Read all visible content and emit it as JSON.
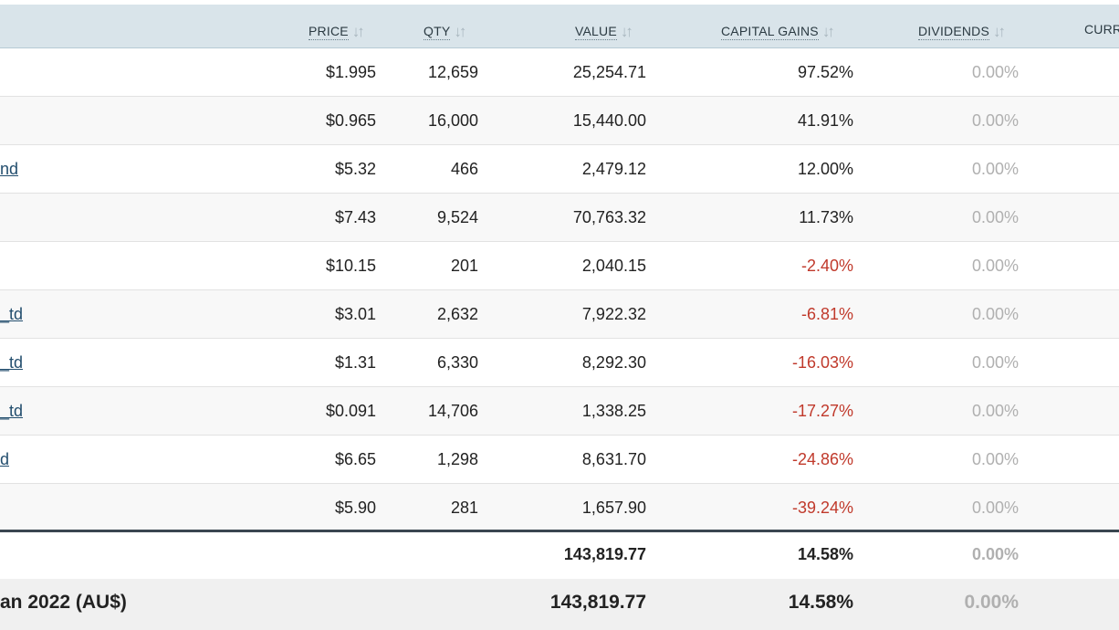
{
  "headers": {
    "price": "PRICE",
    "qty": "QTY",
    "value": "VALUE",
    "capital_gains": "CAPITAL GAINS",
    "dividends": "DIVIDENDS",
    "currency_partial": "CURR"
  },
  "sort_icon": "↓↑",
  "rows": [
    {
      "name": "",
      "price": "$1.995",
      "qty": "12,659",
      "value": "25,254.71",
      "gain": "97.52%",
      "gain_negative": false,
      "dividends": "0.00%"
    },
    {
      "name": "",
      "price": "$0.965",
      "qty": "16,000",
      "value": "15,440.00",
      "gain": "41.91%",
      "gain_negative": false,
      "dividends": "0.00%"
    },
    {
      "name": "nd",
      "price": "$5.32",
      "qty": "466",
      "value": "2,479.12",
      "gain": "12.00%",
      "gain_negative": false,
      "dividends": "0.00%"
    },
    {
      "name": "",
      "price": "$7.43",
      "qty": "9,524",
      "value": "70,763.32",
      "gain": "11.73%",
      "gain_negative": false,
      "dividends": "0.00%"
    },
    {
      "name": "",
      "price": "$10.15",
      "qty": "201",
      "value": "2,040.15",
      "gain": "-2.40%",
      "gain_negative": true,
      "dividends": "0.00%"
    },
    {
      "name": "_td",
      "price": "$3.01",
      "qty": "2,632",
      "value": "7,922.32",
      "gain": "-6.81%",
      "gain_negative": true,
      "dividends": "0.00%"
    },
    {
      "name": "_td",
      "price": "$1.31",
      "qty": "6,330",
      "value": "8,292.30",
      "gain": "-16.03%",
      "gain_negative": true,
      "dividends": "0.00%"
    },
    {
      "name": "_td",
      "price": "$0.091",
      "qty": "14,706",
      "value": "1,338.25",
      "gain": "-17.27%",
      "gain_negative": true,
      "dividends": "0.00%"
    },
    {
      "name": "d",
      "price": "$6.65",
      "qty": "1,298",
      "value": "8,631.70",
      "gain": "-24.86%",
      "gain_negative": true,
      "dividends": "0.00%"
    },
    {
      "name": "",
      "price": "$5.90",
      "qty": "281",
      "value": "1,657.90",
      "gain": "-39.24%",
      "gain_negative": true,
      "dividends": "0.00%"
    }
  ],
  "total": {
    "value": "143,819.77",
    "gain": "14.58%",
    "dividends": "0.00%"
  },
  "summary": {
    "label": "an 2022 (AU$)",
    "value": "143,819.77",
    "gain": "14.58%",
    "dividends": "0.00%"
  },
  "colors": {
    "header_bg": "#d9e4ea",
    "negative": "#c0392b",
    "muted": "#b0b0b0",
    "link": "#234e6e"
  }
}
